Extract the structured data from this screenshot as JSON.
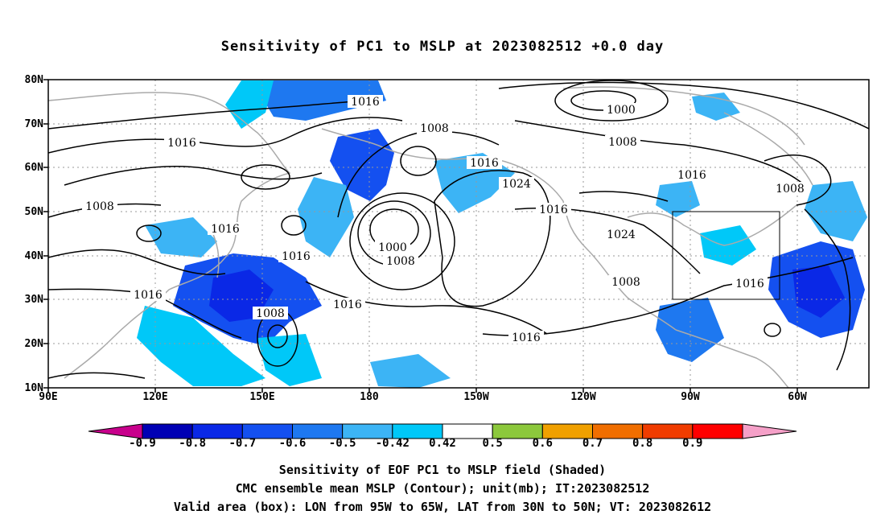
{
  "title": "Sensitivity of PC1 to MSLP at 2023082512 +0.0 day",
  "lat_labels": [
    "80N",
    "70N",
    "60N",
    "50N",
    "40N",
    "30N",
    "20N",
    "10N"
  ],
  "lon_labels": [
    "90E",
    "120E",
    "150E",
    "180",
    "150W",
    "120W",
    "90W",
    "60W"
  ],
  "colorbar": {
    "levels": [
      "-0.9",
      "-0.8",
      "-0.7",
      "-0.6",
      "-0.5",
      "-0.42",
      "0.42",
      "0.5",
      "0.6",
      "0.7",
      "0.8",
      "0.9"
    ],
    "colors": [
      "#c8008c",
      "#0000b4",
      "#0a28e6",
      "#1450f0",
      "#1e78f0",
      "#3cb4f5",
      "#00c8f8",
      "#ffffff",
      "#8cc83c",
      "#f0a000",
      "#f06e00",
      "#f03c00",
      "#ff0000",
      "#f5a0c8"
    ]
  },
  "contour_labels": [
    "1016",
    "1008",
    "1016",
    "1000",
    "1008",
    "1016",
    "1024",
    "1016",
    "1024",
    "1008",
    "1016",
    "1000",
    "1008",
    "1016",
    "1008",
    "1016",
    "1008",
    "1016",
    "1016",
    "1016",
    "1008"
  ],
  "box": {
    "lon_from": "95W",
    "lon_to": "65W",
    "lat_from": "30N",
    "lat_to": "50N"
  },
  "captions": [
    "Sensitivity of EOF PC1 to MSLP field (Shaded)",
    "CMC ensemble mean MSLP (Contour); unit(mb); IT:2023082512",
    "Valid area (box): LON from 95W to 65W, LAT from 30N to 50N; VT: 2023082612"
  ]
}
